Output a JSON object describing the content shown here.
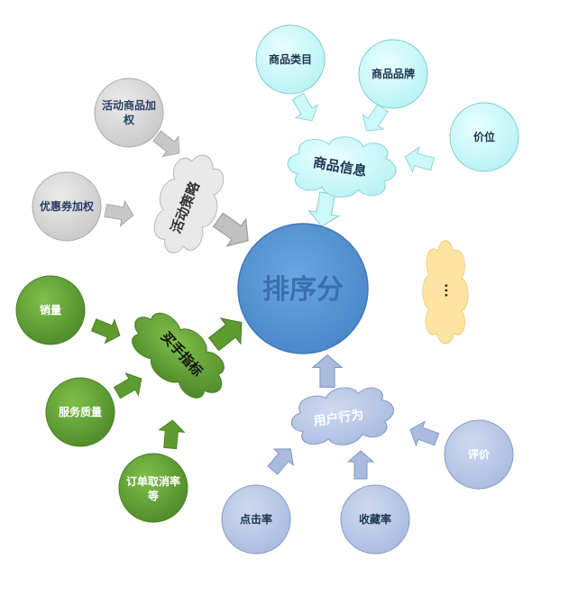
{
  "center": {
    "label": "排序分"
  },
  "clusters": {
    "activity": {
      "label": "活动策略",
      "inputs": [
        "活动商品加权",
        "优惠券加权"
      ]
    },
    "product": {
      "label": "商品信息",
      "inputs": [
        "商品类目",
        "商品品牌",
        "价位"
      ]
    },
    "seller": {
      "label": "买手指标",
      "inputs": [
        "销量",
        "服务质量",
        "订单取消率等"
      ]
    },
    "user": {
      "label": "用户行为",
      "inputs": [
        "点击率",
        "收藏率",
        "评价"
      ]
    },
    "other": {
      "label": "···"
    }
  },
  "colors": {
    "activity": "#dcdcdc",
    "product": "#ccfafa",
    "seller": "#6aa53c",
    "user": "#b8c8e6",
    "center": "#5f98d6",
    "other": "#fde4a0"
  }
}
